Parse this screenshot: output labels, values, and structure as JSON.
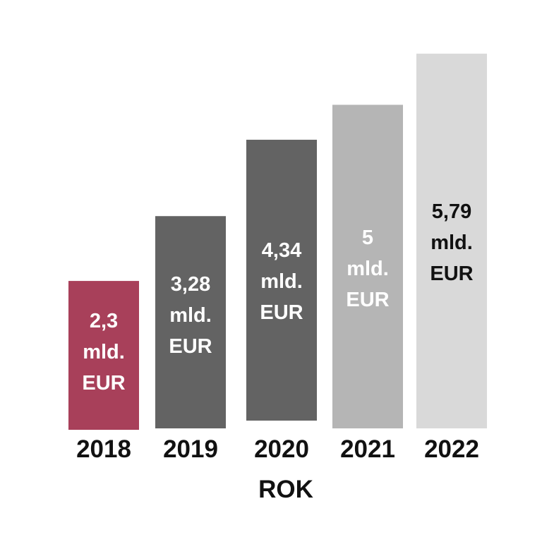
{
  "chart_data": {
    "type": "bar",
    "categories": [
      "2018",
      "2019",
      "2020",
      "2021",
      "2022"
    ],
    "values": [
      2.3,
      3.28,
      4.34,
      5,
      5.79
    ],
    "unit": "mld. EUR",
    "data_labels": [
      [
        "2,3",
        "mld.",
        "EUR"
      ],
      [
        "3,28",
        "mld.",
        "EUR"
      ],
      [
        "4,34",
        "mld.",
        "EUR"
      ],
      [
        "5",
        "mld.",
        "EUR"
      ],
      [
        "5,79",
        "mld.",
        "EUR"
      ]
    ],
    "bar_colors": [
      "#a8405a",
      "#636363",
      "#636363",
      "#b5b5b5",
      "#d9d9d9"
    ],
    "label_colors": [
      "#ffffff",
      "#ffffff",
      "#ffffff",
      "#ffffff",
      "#111111"
    ],
    "xlabel": "ROK",
    "ylabel": "",
    "ylim": [
      0,
      6
    ],
    "grid": false,
    "legend": "none"
  }
}
